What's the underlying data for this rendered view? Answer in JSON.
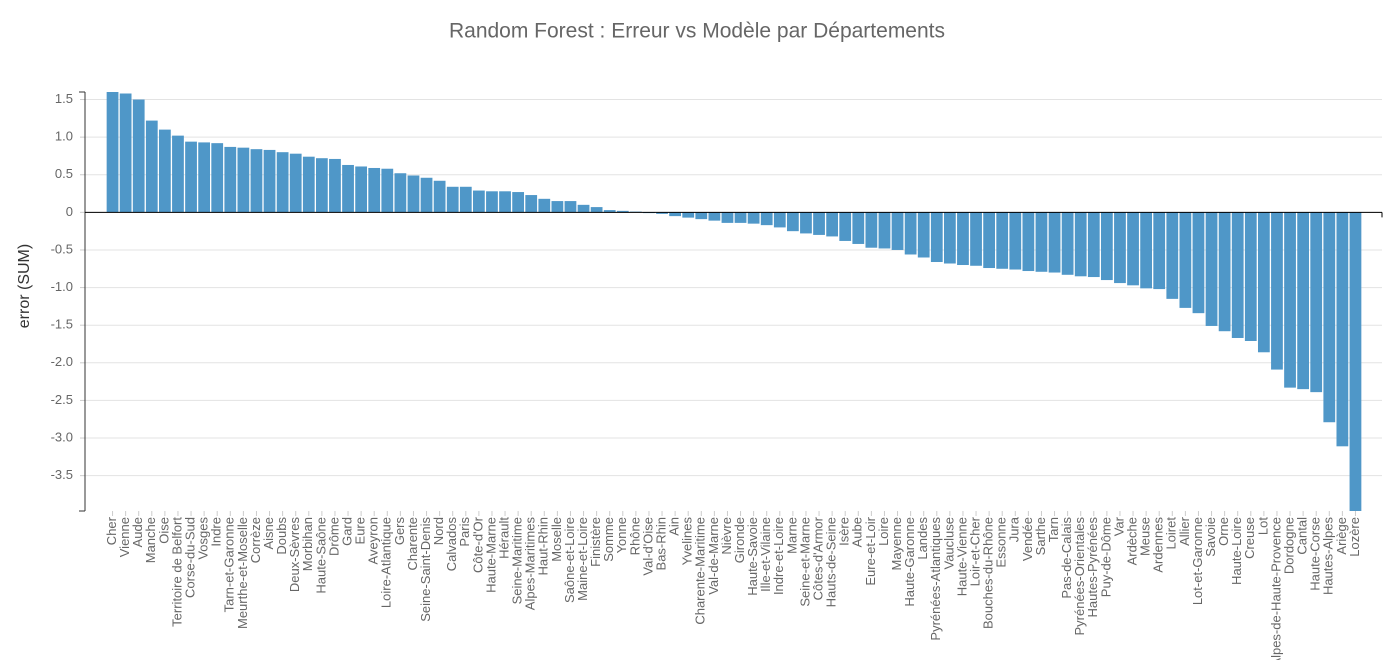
{
  "chart_data": {
    "type": "bar",
    "title": "Random Forest : Erreur vs Modèle par Départements",
    "y_label": "error (SUM)",
    "categories": [
      "Cher",
      "Vienne",
      "Aude",
      "Manche",
      "Oise",
      "Territoire de Belfort",
      "Corse-du-Sud",
      "Vosges",
      "Indre",
      "Tarn-et-Garonne",
      "Meurthe-et-Moselle",
      "Corrèze",
      "Aisne",
      "Doubs",
      "Deux-Sèvres",
      "Morbihan",
      "Haute-Saône",
      "Drôme",
      "Gard",
      "Eure",
      "Aveyron",
      "Loire-Atlantique",
      "Gers",
      "Charente",
      "Seine-Saint-Denis",
      "Nord",
      "Calvados",
      "Paris",
      "Côte-d'Or",
      "Haute-Marne",
      "Hérault",
      "Seine-Maritime",
      "Alpes-Maritimes",
      "Haut-Rhin",
      "Moselle",
      "Saône-et-Loire",
      "Maine-et-Loire",
      "Finistère",
      "Somme",
      "Yonne",
      "Rhône",
      "Val-d'Oise",
      "Bas-Rhin",
      "Ain",
      "Yvelines",
      "Charente-Maritime",
      "Val-de-Marne",
      "Nièvre",
      "Gironde",
      "Haute-Savoie",
      "Ille-et-Vilaine",
      "Indre-et-Loire",
      "Marne",
      "Seine-et-Marne",
      "Côtes-d'Armor",
      "Hauts-de-Seine",
      "Isère",
      "Aube",
      "Eure-et-Loir",
      "Loire",
      "Mayenne",
      "Haute-Garonne",
      "Landes",
      "Pyrénées-Atlantiques",
      "Vaucluse",
      "Haute-Vienne",
      "Loir-et-Cher",
      "Bouches-du-Rhône",
      "Essonne",
      "Jura",
      "Vendée",
      "Sarthe",
      "Tarn",
      "Pas-de-Calais",
      "Pyrénées-Orientales",
      "Hautes-Pyrénées",
      "Puy-de-Dôme",
      "Var",
      "Ardèche",
      "Meuse",
      "Ardennes",
      "Loiret",
      "Allier",
      "Lot-et-Garonne",
      "Savoie",
      "Orne",
      "Haute-Loire",
      "Creuse",
      "Lot",
      "Alpes-de-Haute-Provence",
      "Dordogne",
      "Cantal",
      "Haute-Corse",
      "Hautes-Alpes",
      "Ariège",
      "Lozère"
    ],
    "values": [
      1.6,
      1.58,
      1.5,
      1.22,
      1.1,
      1.02,
      0.94,
      0.93,
      0.92,
      0.87,
      0.86,
      0.84,
      0.83,
      0.8,
      0.78,
      0.74,
      0.72,
      0.71,
      0.63,
      0.61,
      0.59,
      0.58,
      0.52,
      0.49,
      0.46,
      0.42,
      0.34,
      0.34,
      0.29,
      0.28,
      0.28,
      0.27,
      0.23,
      0.18,
      0.15,
      0.15,
      0.1,
      0.07,
      0.03,
      0.02,
      0.01,
      -0.01,
      -0.02,
      -0.05,
      -0.07,
      -0.09,
      -0.11,
      -0.14,
      -0.14,
      -0.15,
      -0.17,
      -0.2,
      -0.25,
      -0.28,
      -0.3,
      -0.32,
      -0.38,
      -0.42,
      -0.47,
      -0.48,
      -0.5,
      -0.56,
      -0.6,
      -0.66,
      -0.68,
      -0.7,
      -0.71,
      -0.74,
      -0.75,
      -0.76,
      -0.78,
      -0.79,
      -0.8,
      -0.83,
      -0.85,
      -0.86,
      -0.9,
      -0.94,
      -0.97,
      -1.01,
      -1.02,
      -1.15,
      -1.27,
      -1.34,
      -1.51,
      -1.58,
      -1.67,
      -1.71,
      -1.86,
      -2.09,
      -2.33,
      -2.35,
      -2.39,
      -2.79,
      -3.11,
      -3.97
    ],
    "color": "#4f97c8",
    "ylim": [
      -3.97,
      1.6
    ],
    "yticks": [
      {
        "value": 1.5,
        "label": "1.5"
      },
      {
        "value": 1,
        "label": "1.0"
      },
      {
        "value": 0.5,
        "label": "0.5"
      },
      0,
      {
        "value": -0.5,
        "label": "-0.5"
      },
      {
        "value": -1,
        "label": "-1.0"
      },
      {
        "value": -1.5,
        "label": "-1.5"
      },
      {
        "value": -2,
        "label": "-2.0"
      },
      {
        "value": -2.5,
        "label": "-2.5"
      },
      {
        "value": -3,
        "label": "-3.0"
      },
      {
        "value": -3.5,
        "label": "-3.5"
      }
    ],
    "grid": true
  }
}
